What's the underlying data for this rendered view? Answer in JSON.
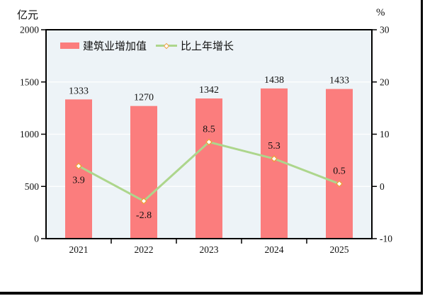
{
  "chart": {
    "left_unit": "亿元",
    "right_unit": "%",
    "legend": [
      {
        "label": "建筑业增加值",
        "swatch": "bar",
        "color": "#FB7D7D"
      },
      {
        "label": "比上年增长",
        "swatch": "line",
        "color": "#ADD68C",
        "marker_fill": "#FFFFFF",
        "marker_stroke": "#EE9E3F"
      }
    ]
  },
  "chart_data": {
    "type": "bar",
    "subtype": "bar+line combo",
    "categories": [
      "2021",
      "2022",
      "2023",
      "2024",
      "2025"
    ],
    "series": [
      {
        "name": "建筑业增加值",
        "type": "bar",
        "axis": "left",
        "values": [
          1333,
          1270,
          1342,
          1438,
          1433
        ],
        "color": "#FB7D7D"
      },
      {
        "name": "比上年增长",
        "type": "line",
        "axis": "right",
        "values": [
          3.9,
          -2.8,
          8.5,
          5.3,
          0.5
        ],
        "color": "#ADD68C",
        "marker": {
          "shape": "diamond",
          "fill": "#FFFFFF",
          "stroke": "#EE9E3F"
        },
        "label_positions": [
          "below",
          "below",
          "above",
          "above",
          "above"
        ]
      }
    ],
    "left_axis": {
      "title": "亿元",
      "min": 0,
      "max": 2000,
      "step": 500,
      "ticks": [
        0,
        500,
        1000,
        1500,
        2000
      ]
    },
    "right_axis": {
      "title": "%",
      "min": -10,
      "max": 30,
      "step": 10,
      "ticks": [
        -10,
        0,
        10,
        20,
        30
      ]
    },
    "grid": true,
    "gridline_color": "#FFFFFF",
    "plot_bg": "#EDF3F7",
    "frame_color": "#000000",
    "legend_position": "top-left-inside"
  }
}
